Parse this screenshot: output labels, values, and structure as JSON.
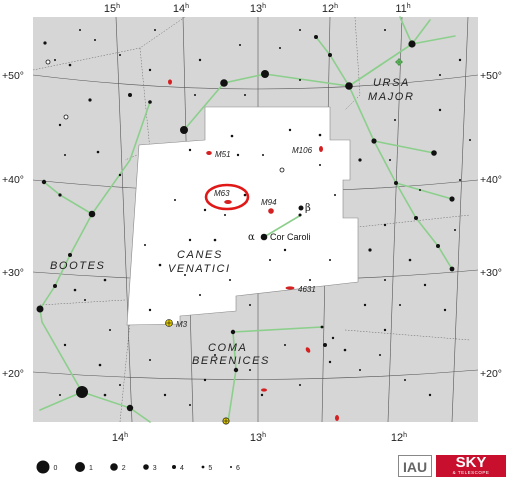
{
  "map": {
    "ra_top": [
      {
        "h": "15",
        "sup": "h"
      },
      {
        "h": "14",
        "sup": "h"
      },
      {
        "h": "13",
        "sup": "h"
      },
      {
        "h": "12",
        "sup": "h"
      },
      {
        "h": "11",
        "sup": "h"
      }
    ],
    "ra_bottom": [
      {
        "h": "14",
        "sup": "h"
      },
      {
        "h": "13",
        "sup": "h"
      },
      {
        "h": "12",
        "sup": "h"
      }
    ],
    "dec_left": [
      "+50°",
      "+40°",
      "+30°",
      "+20°"
    ],
    "dec_right": [
      "+50°",
      "+40°",
      "+30°",
      "+20°"
    ],
    "constellations": {
      "canes_venatici": [
        "CANES",
        "VENATICI"
      ],
      "ursa_major": [
        "URSA",
        "MAJOR"
      ],
      "bootes": "BOOTES",
      "coma_berenices": [
        "COMA",
        "BERENICES"
      ]
    },
    "objects": {
      "m51": "M51",
      "m106": "M106",
      "m63": "M63",
      "m94": "M94",
      "ngc4631": "4631",
      "m3": "M3"
    },
    "stars": {
      "cor_caroli": "Cor Caroli",
      "alpha": "α",
      "beta": "β"
    },
    "legend": [
      "0",
      "1",
      "2",
      "3",
      "4",
      "5",
      "6"
    ],
    "colors": {
      "background": "#d6d6d6",
      "constellation_area": "#ffffff",
      "stick_lines": "#8ccf8c",
      "galaxy": "#d42020",
      "highlight_ring": "#e01818",
      "cluster": "#e8d000"
    }
  },
  "branding": {
    "iau": "IAU",
    "sky_line1": "SKY",
    "sky_line2": "& TELESCOPE"
  }
}
